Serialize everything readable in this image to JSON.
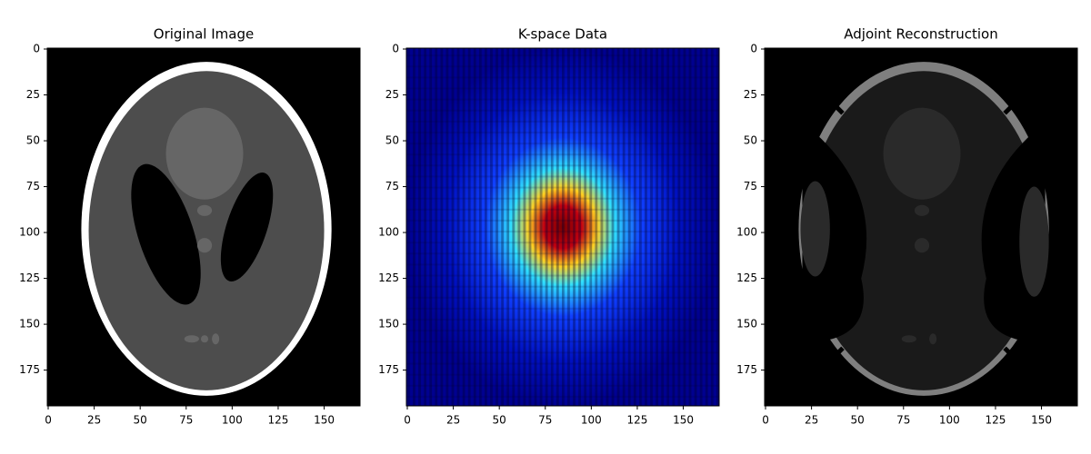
{
  "chart_data": [
    {
      "type": "image",
      "title": "Original Image",
      "cmap": "gray",
      "xlim": [
        -0.5,
        169.5
      ],
      "ylim": [
        194.5,
        -0.5
      ],
      "xticks": [
        0,
        25,
        50,
        75,
        100,
        125,
        150
      ],
      "yticks": [
        0,
        25,
        50,
        75,
        100,
        125,
        150,
        175
      ]
    },
    {
      "type": "image",
      "title": "K-space Data",
      "cmap": "jet",
      "xlim": [
        -0.5,
        169.5
      ],
      "ylim": [
        194.5,
        -0.5
      ],
      "xticks": [
        0,
        25,
        50,
        75,
        100,
        125,
        150
      ],
      "yticks": [
        0,
        25,
        50,
        75,
        100,
        125,
        150,
        175
      ]
    },
    {
      "type": "image",
      "title": "Adjoint Reconstruction",
      "cmap": "gray",
      "xlim": [
        -0.5,
        169.5
      ],
      "ylim": [
        194.5,
        -0.5
      ],
      "xticks": [
        0,
        25,
        50,
        75,
        100,
        125,
        150
      ],
      "yticks": [
        0,
        25,
        50,
        75,
        100,
        125,
        150,
        175
      ]
    }
  ]
}
